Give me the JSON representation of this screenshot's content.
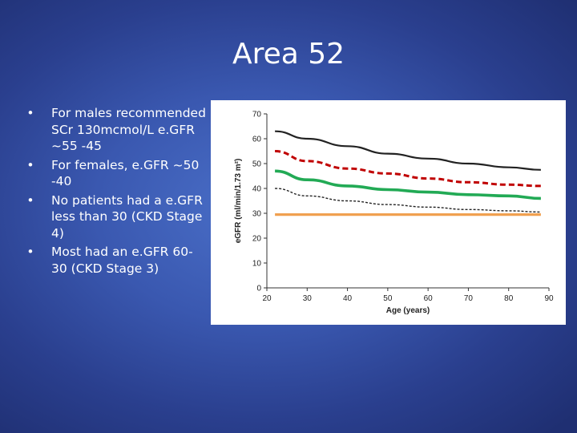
{
  "slide": {
    "title": "Area 52",
    "bullets": [
      "For males recommended SCr 130mcmol/L e.GFR ~55 -45",
      "For females, e.GFR ~50 -40",
      "No patients had a e.GFR less than 30 (CKD Stage 4)",
      "Most had an e.GFR 60-30 (CKD Stage 3)"
    ],
    "bullet_symbol": "•"
  },
  "chart_data": {
    "type": "line",
    "title": "",
    "xlabel": "Age (years)",
    "ylabel": "eGFR (ml/min/1.73 m²)",
    "xlim": [
      20,
      90
    ],
    "ylim": [
      0,
      70
    ],
    "xticks": [
      20,
      30,
      40,
      50,
      60,
      70,
      80,
      90
    ],
    "yticks": [
      0,
      10,
      20,
      30,
      40,
      50,
      60,
      70
    ],
    "grid": false,
    "series": [
      {
        "color": "#222222",
        "style": "solid",
        "x": [
          22,
          30,
          40,
          50,
          60,
          70,
          80,
          88
        ],
        "y": [
          63,
          60,
          57,
          54,
          52,
          50,
          48.5,
          47.5
        ]
      },
      {
        "color": "#c00000",
        "style": "dashed",
        "x": [
          22,
          30,
          40,
          50,
          60,
          70,
          80,
          88
        ],
        "y": [
          55,
          51,
          48,
          46,
          44,
          42.5,
          41.5,
          41
        ]
      },
      {
        "color": "#22aa55",
        "style": "solid",
        "x": [
          22,
          30,
          40,
          50,
          60,
          70,
          80,
          88
        ],
        "y": [
          47,
          43.5,
          41,
          39.5,
          38.5,
          37.5,
          37,
          36
        ]
      },
      {
        "color": "#222222",
        "style": "dotted",
        "x": [
          22,
          30,
          40,
          50,
          60,
          70,
          80,
          88
        ],
        "y": [
          40,
          37,
          35,
          33.5,
          32.5,
          31.5,
          31,
          30.5
        ]
      },
      {
        "color": "#f0a050",
        "style": "solid",
        "x": [
          22,
          88
        ],
        "y": [
          29.5,
          29.5
        ]
      }
    ]
  }
}
